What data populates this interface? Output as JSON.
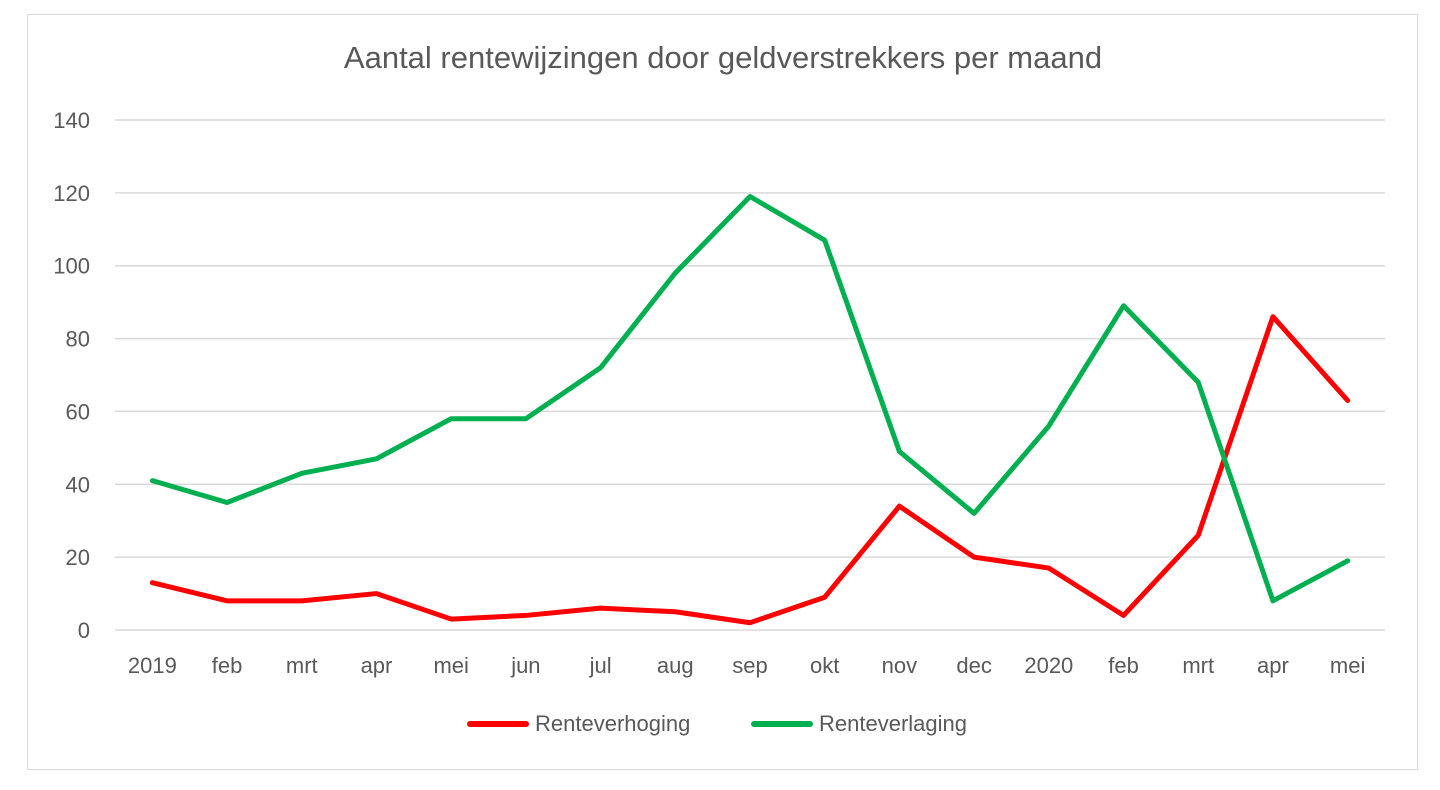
{
  "chart_data": {
    "type": "line",
    "title": "Aantal rentewijzingen door geldverstrekkers per maand",
    "categories": [
      "2019",
      "feb",
      "mrt",
      "apr",
      "mei",
      "jun",
      "jul",
      "aug",
      "sep",
      "okt",
      "nov",
      "dec",
      "2020",
      "feb",
      "mrt",
      "apr",
      "mei"
    ],
    "ylim": [
      0,
      140
    ],
    "yticks": [
      0,
      20,
      40,
      60,
      80,
      100,
      120,
      140
    ],
    "grid": true,
    "legend_position": "bottom",
    "series": [
      {
        "name": "Renteverhoging",
        "color": "#ff0000",
        "values": [
          13,
          8,
          8,
          10,
          3,
          4,
          6,
          5,
          2,
          9,
          34,
          20,
          17,
          4,
          26,
          86,
          63
        ]
      },
      {
        "name": "Renteverlaging",
        "color": "#00b050",
        "values": [
          41,
          35,
          43,
          47,
          58,
          58,
          72,
          98,
          119,
          107,
          49,
          32,
          56,
          89,
          68,
          8,
          19
        ]
      }
    ]
  }
}
